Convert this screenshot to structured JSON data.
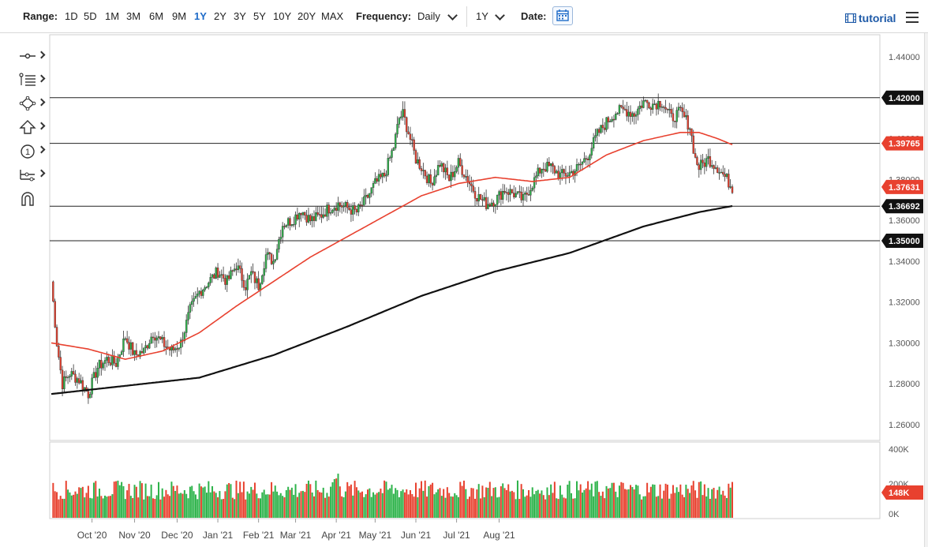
{
  "toolbar": {
    "range_label": "Range:",
    "ranges": [
      "1D",
      "5D",
      "1M",
      "3M",
      "6M",
      "9M",
      "1Y",
      "2Y",
      "3Y",
      "5Y",
      "10Y",
      "20Y",
      "MAX"
    ],
    "active_range": "1Y",
    "frequency_label": "Frequency:",
    "frequency_value": "Daily",
    "period_value": "1Y",
    "date_label": "Date:",
    "tutorial_label": "tutorial"
  },
  "tools": [
    "crosshair-tool",
    "fibonacci-tool",
    "pattern-tool",
    "arrow-tool",
    "numbered-marker-tool",
    "measure-tool",
    "magnet-tool"
  ],
  "colors": {
    "up": "#2db34a",
    "down": "#e8412f",
    "ma_short": "#e8412f",
    "ma_long": "#111111",
    "accent": "#1e6bc8"
  },
  "chart_data": {
    "type": "candlestick",
    "instrument": "",
    "x_axis_labels": [
      "Oct '20",
      "Nov '20",
      "Dec '20",
      "Jan '21",
      "Feb '21",
      "Mar '21",
      "Apr '21",
      "May '21",
      "Jun '21",
      "Jul '21",
      "Aug '21"
    ],
    "price_ylim": [
      1.25,
      1.445
    ],
    "price_ticks": [
      "1.44000",
      "1.42000",
      "1.40000",
      "1.38000",
      "1.36000",
      "1.34000",
      "1.32000",
      "1.30000",
      "1.28000",
      "1.26000"
    ],
    "horizontal_levels": [
      {
        "value": "1.42000",
        "color": "#111111"
      },
      {
        "value": "1.39765",
        "color": "#e8412f"
      },
      {
        "value": "1.36692",
        "color": "#111111"
      },
      {
        "value": "1.35000",
        "color": "#111111"
      }
    ],
    "last_price_label": "1.37631",
    "volume_ticks": [
      "400K",
      "200K",
      "0K"
    ],
    "last_volume_label": "148K",
    "price_anchors": [
      [
        0,
        1.33
      ],
      [
        3,
        1.3
      ],
      [
        6,
        1.28
      ],
      [
        10,
        1.285
      ],
      [
        15,
        1.282
      ],
      [
        20,
        1.275
      ],
      [
        25,
        1.288
      ],
      [
        30,
        1.292
      ],
      [
        35,
        1.29
      ],
      [
        40,
        1.303
      ],
      [
        45,
        1.294
      ],
      [
        50,
        1.296
      ],
      [
        55,
        1.305
      ],
      [
        60,
        1.3
      ],
      [
        65,
        1.296
      ],
      [
        70,
        1.3
      ],
      [
        75,
        1.316
      ],
      [
        80,
        1.325
      ],
      [
        85,
        1.33
      ],
      [
        90,
        1.335
      ],
      [
        95,
        1.33
      ],
      [
        100,
        1.338
      ],
      [
        105,
        1.328
      ],
      [
        108,
        1.334
      ],
      [
        112,
        1.328
      ],
      [
        116,
        1.343
      ],
      [
        120,
        1.34
      ],
      [
        125,
        1.358
      ],
      [
        130,
        1.36
      ],
      [
        135,
        1.365
      ],
      [
        140,
        1.36
      ],
      [
        145,
        1.362
      ],
      [
        150,
        1.366
      ],
      [
        155,
        1.368
      ],
      [
        160,
        1.366
      ],
      [
        165,
        1.364
      ],
      [
        170,
        1.37
      ],
      [
        175,
        1.378
      ],
      [
        180,
        1.382
      ],
      [
        185,
        1.396
      ],
      [
        188,
        1.41
      ],
      [
        190,
        1.412
      ],
      [
        193,
        1.403
      ],
      [
        197,
        1.39
      ],
      [
        200,
        1.386
      ],
      [
        205,
        1.378
      ],
      [
        210,
        1.388
      ],
      [
        215,
        1.38
      ],
      [
        220,
        1.388
      ],
      [
        225,
        1.38
      ],
      [
        230,
        1.372
      ],
      [
        235,
        1.368
      ],
      [
        240,
        1.37
      ],
      [
        245,
        1.375
      ],
      [
        250,
        1.373
      ],
      [
        255,
        1.37
      ],
      [
        260,
        1.378
      ],
      [
        265,
        1.386
      ],
      [
        270,
        1.386
      ],
      [
        275,
        1.382
      ],
      [
        280,
        1.383
      ],
      [
        285,
        1.386
      ],
      [
        290,
        1.392
      ],
      [
        295,
        1.402
      ],
      [
        300,
        1.408
      ],
      [
        305,
        1.413
      ],
      [
        310,
        1.414
      ],
      [
        315,
        1.412
      ],
      [
        320,
        1.418
      ],
      [
        325,
        1.417
      ],
      [
        330,
        1.418
      ],
      [
        335,
        1.41
      ],
      [
        340,
        1.413
      ],
      [
        345,
        1.406
      ],
      [
        348,
        1.39
      ],
      [
        350,
        1.386
      ],
      [
        355,
        1.39
      ],
      [
        360,
        1.386
      ],
      [
        365,
        1.38
      ],
      [
        368,
        1.376
      ]
    ],
    "series": [
      {
        "name": "",
        "type": "candlestick"
      },
      {
        "name": "",
        "type": "moving-average",
        "color": "#e8412f"
      },
      {
        "name": "",
        "type": "moving-average",
        "color": "#111111"
      },
      {
        "name": "",
        "type": "volume"
      }
    ],
    "ma_short_anchors": [
      [
        0,
        1.3
      ],
      [
        20,
        1.297
      ],
      [
        40,
        1.292
      ],
      [
        60,
        1.296
      ],
      [
        80,
        1.305
      ],
      [
        100,
        1.318
      ],
      [
        120,
        1.33
      ],
      [
        140,
        1.342
      ],
      [
        160,
        1.352
      ],
      [
        180,
        1.362
      ],
      [
        200,
        1.372
      ],
      [
        220,
        1.378
      ],
      [
        240,
        1.381
      ],
      [
        260,
        1.379
      ],
      [
        280,
        1.381
      ],
      [
        300,
        1.392
      ],
      [
        320,
        1.399
      ],
      [
        340,
        1.403
      ],
      [
        350,
        1.403
      ],
      [
        360,
        1.4
      ],
      [
        368,
        1.397
      ]
    ],
    "ma_long_anchors": [
      [
        0,
        1.275
      ],
      [
        40,
        1.279
      ],
      [
        80,
        1.283
      ],
      [
        120,
        1.294
      ],
      [
        160,
        1.308
      ],
      [
        200,
        1.323
      ],
      [
        240,
        1.335
      ],
      [
        280,
        1.344
      ],
      [
        320,
        1.357
      ],
      [
        350,
        1.364
      ],
      [
        368,
        1.367
      ]
    ],
    "volume_range": [
      0,
      400000
    ],
    "volume_level": 150000
  }
}
